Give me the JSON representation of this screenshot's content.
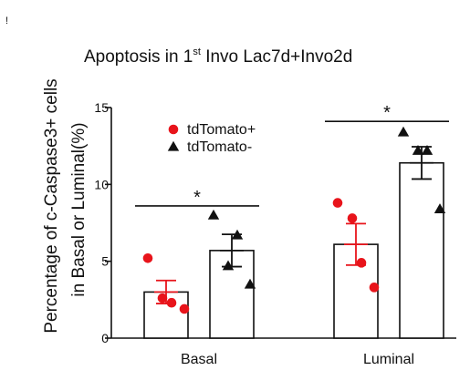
{
  "corner_mark": "!",
  "chart_data": {
    "type": "bar",
    "title": {
      "prefix": "Apoptosis in 1",
      "superscript": "st",
      "suffix": " Invo Lac7d+Invo2d"
    },
    "ylabel_line1": "Percentage of c-Caspase3+ cells",
    "ylabel_line2": "in Basal or Luminal(%)",
    "xlabel": "",
    "ylim": [
      0,
      15
    ],
    "yticks": [
      0,
      5,
      10,
      15
    ],
    "categories": [
      "Basal",
      "Luminal"
    ],
    "grid": false,
    "legend_position": "top-left",
    "series": [
      {
        "name": "tdTomato+",
        "marker": "circle",
        "color": "#e8141b",
        "values": [
          3.0,
          6.1
        ],
        "errors": [
          0.75,
          1.35
        ],
        "points": [
          [
            5.2,
            2.6,
            2.3,
            1.9
          ],
          [
            8.8,
            7.8,
            4.9,
            3.3
          ]
        ]
      },
      {
        "name": "tdTomato-",
        "marker": "triangle",
        "color": "#111111",
        "values": [
          5.7,
          11.4
        ],
        "errors": [
          1.05,
          1.05
        ],
        "points": [
          [
            8.0,
            4.7,
            6.7,
            3.5
          ],
          [
            13.4,
            12.2,
            12.2,
            8.4
          ]
        ]
      }
    ],
    "significance": [
      {
        "label": "*",
        "category": "Basal",
        "y": 8.6
      },
      {
        "label": "*",
        "category": "Luminal",
        "y": 14.1
      }
    ]
  }
}
